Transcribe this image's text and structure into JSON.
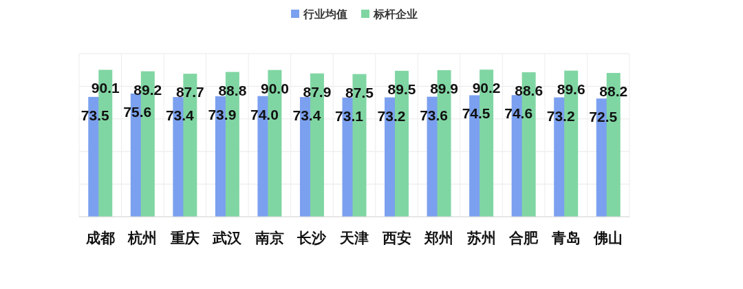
{
  "chart_data": {
    "type": "bar",
    "categories": [
      "成都",
      "杭州",
      "重庆",
      "武汉",
      "南京",
      "长沙",
      "天津",
      "西安",
      "郑州",
      "苏州",
      "合肥",
      "青岛",
      "佛山"
    ],
    "series": [
      {
        "name": "行业均值",
        "color": "#7ba0ef",
        "values": [
          73.5,
          75.6,
          73.4,
          73.9,
          74.0,
          73.4,
          73.1,
          73.2,
          73.6,
          74.5,
          74.6,
          73.2,
          72.5
        ],
        "value_labels": [
          "73.5",
          "75.6",
          "73.4",
          "73.9",
          "74.0",
          "73.4",
          "73.1",
          "73.2",
          "73.6",
          "74.5",
          "74.6",
          "73.2",
          "72.5"
        ]
      },
      {
        "name": "标杆企业",
        "color": "#80d6a3",
        "values": [
          90.1,
          89.2,
          87.7,
          88.8,
          90.0,
          87.9,
          87.5,
          89.5,
          89.9,
          90.2,
          88.6,
          89.6,
          88.2
        ],
        "value_labels": [
          "90.1",
          "89.2",
          "87.7",
          "88.8",
          "90.0",
          "87.9",
          "87.5",
          "89.5",
          "89.9",
          "90.2",
          "88.6",
          "89.6",
          "88.2"
        ]
      }
    ],
    "ylim": [
      0,
      100
    ],
    "yticks": [
      {
        "value": 0,
        "label": null
      },
      {
        "value": 20,
        "label": null
      },
      {
        "value": 40,
        "label": null
      },
      {
        "value": 60,
        "label": null
      },
      {
        "value": 80,
        "label": null
      },
      {
        "value": 100,
        "label": null
      }
    ],
    "tick_labels": "x",
    "grid": true,
    "legend": "top"
  }
}
